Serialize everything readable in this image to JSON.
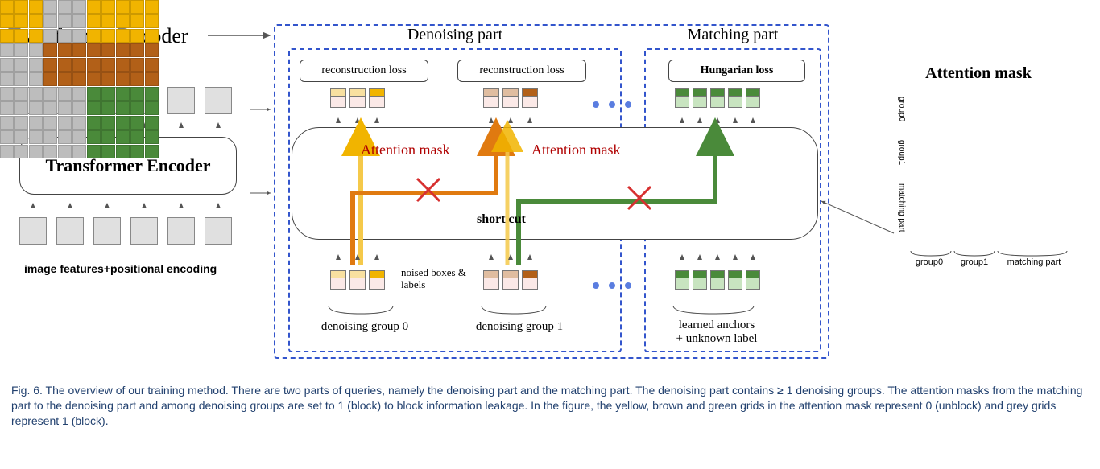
{
  "diagram": {
    "title_decoder": "Transformer Decoder",
    "encoder_label": "Transformer Encoder",
    "encoder_sublabel": "image features+positional encoding",
    "denoising_title": "Denoising part",
    "matching_title": "Matching part",
    "recon_loss": "reconstruction loss",
    "hungarian_loss": "Hungarian loss",
    "attn_mask_label": "Attention mask",
    "short_cut": "short cut",
    "noised_label": "noised boxes & labels",
    "group0": "denoising group 0",
    "group1": "denoising group 1",
    "learned_anchors_l1": "learned anchors",
    "learned_anchors_l2": "+ unknown label",
    "attn_mask_title": "Attention mask",
    "mask_group0": "group0",
    "mask_group1": "group1",
    "mask_matching": "matching part",
    "colors": {
      "yellow": "#f1b400",
      "yellow_lt": "#f8e0a0",
      "brown": "#b26018",
      "brown_lt": "#e0bda0",
      "green": "#4a8a3a",
      "green_lt": "#c8e4c0",
      "grey": "#bdbdbd",
      "grey_box": "#e0e0e0",
      "pink": "#fbe9e7",
      "dash_blue": "#3355cc",
      "red_x": "#d73030",
      "dot_blue": "#5a7de0",
      "text_cap": "#22416f"
    },
    "sizes": {
      "encoder_feat_box": 34,
      "query_w": 20,
      "matching_query_w": 18,
      "mask_cell": 17
    },
    "mask": {
      "rows": 11,
      "cols": 11,
      "group0_span": [
        0,
        3
      ],
      "group1_span": [
        3,
        6
      ],
      "matching_span": [
        6,
        11
      ]
    }
  },
  "caption": {
    "prefix": "Fig. 6.",
    "text": " The overview of our training method. There are two parts of queries, namely the denoising part and the matching part. The denoising part contains ≥ 1 denoising groups. The attention masks from the matching part to the denoising part and among denoising groups are set to 1 (block) to block information leakage. In the figure, the yellow, brown and green grids in the attention mask represent 0 (unblock) and grey grids represent 1 (block)."
  }
}
